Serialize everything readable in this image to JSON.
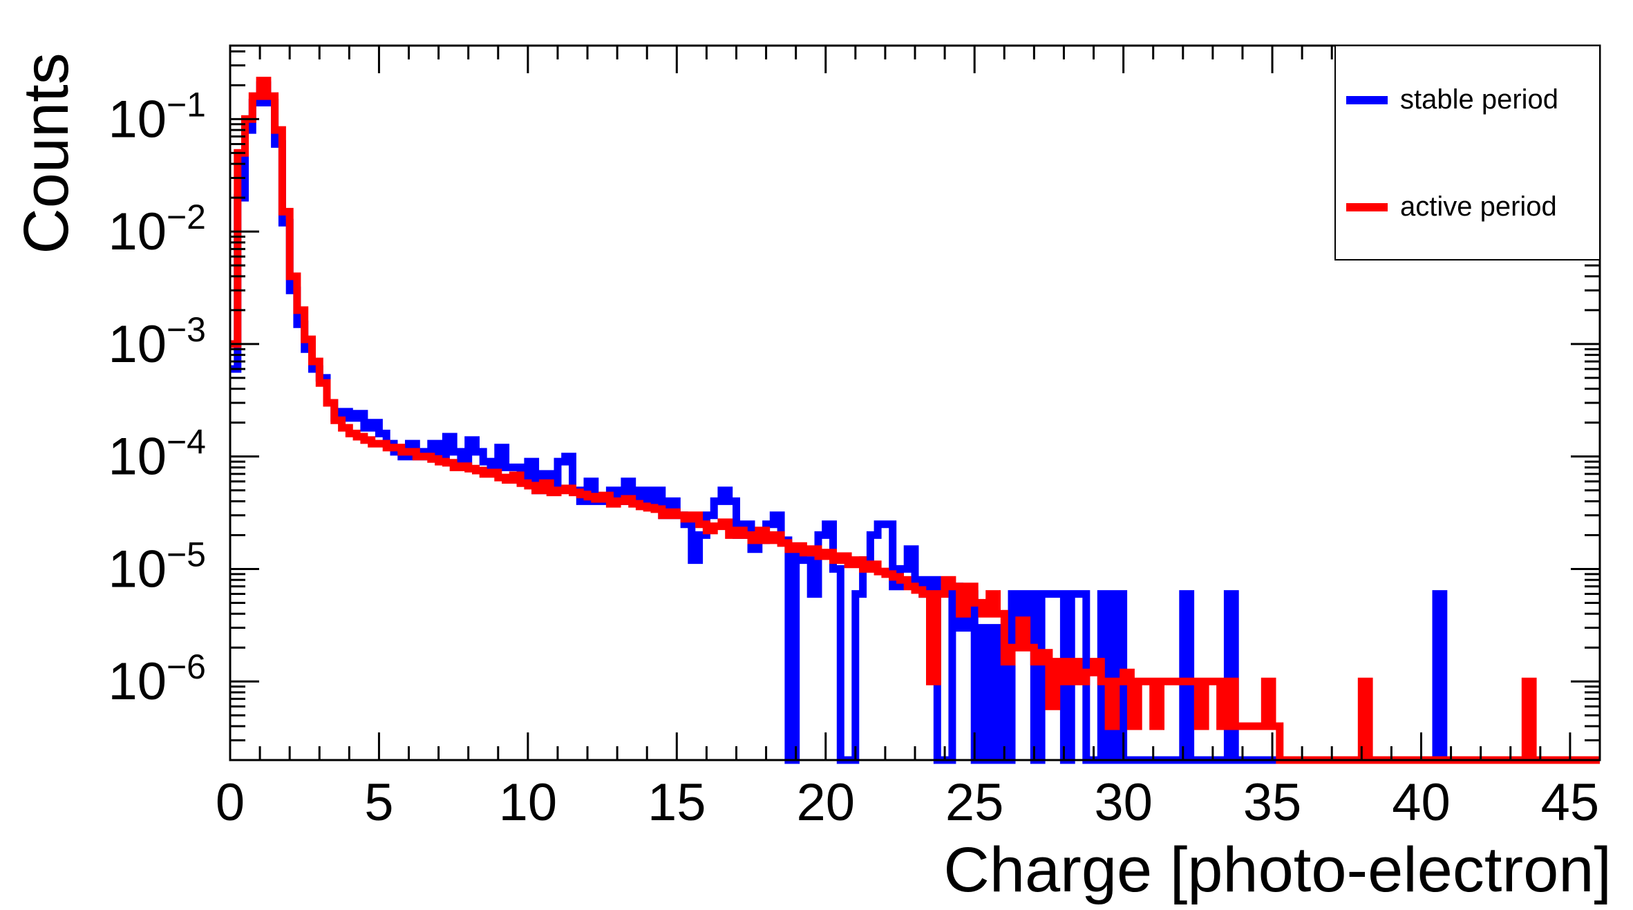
{
  "chart_data": {
    "type": "histogram-step",
    "xlabel": "Charge [photo-electron]",
    "ylabel": "Counts",
    "xlim": [
      0,
      46
    ],
    "ylim": [
      2e-07,
      0.45
    ],
    "yscale": "log",
    "bin_width": 0.25,
    "grid": false,
    "legend_position": "top-right",
    "x_ticks": [
      "0",
      "5",
      "10",
      "15",
      "20",
      "25",
      "30",
      "35",
      "40",
      "45"
    ],
    "y_ticks": [
      {
        "base": "10",
        "exp": "−1",
        "value": 0.1
      },
      {
        "base": "10",
        "exp": "−2",
        "value": 0.01
      },
      {
        "base": "10",
        "exp": "−3",
        "value": 0.001
      },
      {
        "base": "10",
        "exp": "−4",
        "value": 0.0001
      },
      {
        "base": "10",
        "exp": "−5",
        "value": 1e-05
      },
      {
        "base": "10",
        "exp": "−6",
        "value": 1e-06
      }
    ],
    "series": [
      {
        "name": "stable period",
        "color": "#0000ff",
        "bins": [
          [
            0.0,
            0.0006
          ],
          [
            0.25,
            0.02
          ],
          [
            0.5,
            0.08
          ],
          [
            0.75,
            0.14
          ],
          [
            1.0,
            0.2
          ],
          [
            1.25,
            0.14
          ],
          [
            1.5,
            0.06
          ],
          [
            1.75,
            0.012
          ],
          [
            2.0,
            0.003
          ],
          [
            2.25,
            0.0015
          ],
          [
            2.5,
            0.0009
          ],
          [
            2.75,
            0.0006
          ],
          [
            3.0,
            0.0005
          ],
          [
            3.25,
            0.0003
          ],
          [
            3.5,
            0.00022
          ],
          [
            3.75,
            0.00025
          ],
          [
            4.0,
            0.00022
          ],
          [
            4.25,
            0.00024
          ],
          [
            4.5,
            0.00018
          ],
          [
            4.75,
            0.0002
          ],
          [
            5.0,
            0.00016
          ],
          [
            5.25,
            0.00013
          ],
          [
            5.5,
            0.00011
          ],
          [
            5.75,
            0.0001
          ],
          [
            6.0,
            0.00013
          ],
          [
            6.25,
            0.0001
          ],
          [
            6.5,
            0.00011
          ],
          [
            6.75,
            0.00013
          ],
          [
            7.0,
            0.0001
          ],
          [
            7.25,
            0.00015
          ],
          [
            7.5,
            0.00011
          ],
          [
            7.75,
            9e-05
          ],
          [
            8.0,
            0.00014
          ],
          [
            8.25,
            0.00011
          ],
          [
            8.5,
            9e-05
          ],
          [
            8.75,
            8e-05
          ],
          [
            9.0,
            0.00012
          ],
          [
            9.25,
            8e-05
          ],
          [
            9.5,
            8e-05
          ],
          [
            9.75,
            6e-05
          ],
          [
            10.0,
            9e-05
          ],
          [
            10.25,
            5e-05
          ],
          [
            10.5,
            7e-05
          ],
          [
            10.75,
            5e-05
          ],
          [
            11.0,
            9e-05
          ],
          [
            11.25,
            0.0001
          ],
          [
            11.5,
            5e-05
          ],
          [
            11.75,
            4e-05
          ],
          [
            12.0,
            6e-05
          ],
          [
            12.25,
            4e-05
          ],
          [
            12.5,
            4e-05
          ],
          [
            12.75,
            5e-05
          ],
          [
            13.0,
            4e-05
          ],
          [
            13.25,
            6e-05
          ],
          [
            13.5,
            4e-05
          ],
          [
            13.75,
            5e-05
          ],
          [
            14.0,
            4e-05
          ],
          [
            14.25,
            5e-05
          ],
          [
            14.5,
            3e-05
          ],
          [
            14.75,
            4e-05
          ],
          [
            15.0,
            3e-05
          ],
          [
            15.25,
            2.5e-05
          ],
          [
            15.5,
            1.2e-05
          ],
          [
            15.75,
            2e-05
          ],
          [
            16.0,
            3e-05
          ],
          [
            16.25,
            4e-05
          ],
          [
            16.5,
            5e-05
          ],
          [
            16.75,
            4e-05
          ],
          [
            17.0,
            2e-05
          ],
          [
            17.25,
            2.5e-05
          ],
          [
            17.5,
            1.5e-05
          ],
          [
            17.75,
            1.8e-05
          ],
          [
            18.0,
            2.5e-05
          ],
          [
            18.25,
            3e-05
          ],
          [
            18.5,
            1.8e-05
          ],
          [
            18.75,
            0.0
          ],
          [
            19.0,
            1.5e-05
          ],
          [
            19.25,
            1.2e-05
          ],
          [
            19.5,
            6e-06
          ],
          [
            19.75,
            2e-05
          ],
          [
            20.0,
            2.5e-05
          ],
          [
            20.25,
            1e-05
          ],
          [
            20.5,
            0.0
          ],
          [
            20.75,
            0.0
          ],
          [
            21.0,
            6e-06
          ],
          [
            21.25,
            1.2e-05
          ],
          [
            21.5,
            2e-05
          ],
          [
            21.75,
            2.5e-05
          ],
          [
            22.0,
            2.5e-05
          ],
          [
            22.25,
            7e-06
          ],
          [
            22.5,
            1e-05
          ],
          [
            22.75,
            1.5e-05
          ],
          [
            23.0,
            8e-06
          ],
          [
            23.25,
            6e-06
          ],
          [
            23.5,
            8e-06
          ],
          [
            23.75,
            0.0
          ],
          [
            24.0,
            0.0
          ],
          [
            24.25,
            7e-06
          ],
          [
            24.5,
            3e-06
          ],
          [
            24.75,
            6e-06
          ],
          [
            25.0,
            0.0
          ],
          [
            25.25,
            3e-06
          ],
          [
            25.5,
            0.0
          ],
          [
            25.75,
            3e-06
          ],
          [
            26.0,
            0.0
          ],
          [
            26.25,
            6e-06
          ],
          [
            26.5,
            3e-06
          ],
          [
            26.75,
            6e-06
          ],
          [
            27.0,
            0.0
          ],
          [
            27.25,
            6e-06
          ],
          [
            27.5,
            6e-06
          ],
          [
            27.75,
            6e-06
          ],
          [
            28.0,
            0.0
          ],
          [
            28.25,
            6e-06
          ],
          [
            28.5,
            6e-06
          ],
          [
            28.75,
            0.0
          ],
          [
            29.0,
            0.0
          ],
          [
            29.25,
            6e-06
          ],
          [
            29.5,
            0.0
          ],
          [
            29.75,
            6e-06
          ],
          [
            30.0,
            0.0
          ],
          [
            30.25,
            0.0
          ],
          [
            32.0,
            6e-06
          ],
          [
            33.5,
            6e-06
          ],
          [
            40.5,
            6e-06
          ]
        ]
      },
      {
        "name": "active period",
        "color": "#ff0000",
        "bins": [
          [
            0.0,
            0.001
          ],
          [
            0.25,
            0.05
          ],
          [
            0.5,
            0.1
          ],
          [
            0.75,
            0.16
          ],
          [
            1.0,
            0.22
          ],
          [
            1.25,
            0.16
          ],
          [
            1.5,
            0.08
          ],
          [
            1.75,
            0.015
          ],
          [
            2.0,
            0.004
          ],
          [
            2.25,
            0.002
          ],
          [
            2.5,
            0.0011
          ],
          [
            2.75,
            0.0007
          ],
          [
            3.0,
            0.00045
          ],
          [
            3.25,
            0.0003
          ],
          [
            3.5,
            0.00021
          ],
          [
            3.75,
            0.00018
          ],
          [
            4.0,
            0.00016
          ],
          [
            4.25,
            0.00015
          ],
          [
            4.5,
            0.00014
          ],
          [
            4.75,
            0.00013
          ],
          [
            5.0,
            0.00013
          ],
          [
            5.25,
            0.00012
          ],
          [
            5.5,
            0.00012
          ],
          [
            5.75,
            0.00011
          ],
          [
            6.0,
            0.00011
          ],
          [
            6.25,
            0.0001
          ],
          [
            6.5,
            0.0001
          ],
          [
            6.75,
            9.5e-05
          ],
          [
            7.0,
            9e-05
          ],
          [
            7.25,
            8.8e-05
          ],
          [
            7.5,
            8e-05
          ],
          [
            7.75,
            8.2e-05
          ],
          [
            8.0,
            7.8e-05
          ],
          [
            8.25,
            7.5e-05
          ],
          [
            8.5,
            7e-05
          ],
          [
            8.75,
            7.2e-05
          ],
          [
            9.0,
            6.5e-05
          ],
          [
            9.25,
            6.2e-05
          ],
          [
            9.5,
            6.8e-05
          ],
          [
            9.75,
            5.8e-05
          ],
          [
            10.0,
            5.5e-05
          ],
          [
            10.25,
            5e-05
          ],
          [
            10.5,
            5.8e-05
          ],
          [
            10.75,
            4.8e-05
          ],
          [
            11.0,
            5e-05
          ],
          [
            11.25,
            5.2e-05
          ],
          [
            11.5,
            4.8e-05
          ],
          [
            11.75,
            4.6e-05
          ],
          [
            12.0,
            4.4e-05
          ],
          [
            12.25,
            4.2e-05
          ],
          [
            12.5,
            4.5e-05
          ],
          [
            12.75,
            3.8e-05
          ],
          [
            13.0,
            4e-05
          ],
          [
            13.25,
            4.2e-05
          ],
          [
            13.5,
            3.8e-05
          ],
          [
            13.75,
            3.6e-05
          ],
          [
            14.0,
            3.5e-05
          ],
          [
            14.25,
            3.4e-05
          ],
          [
            14.5,
            3e-05
          ],
          [
            14.75,
            3.2e-05
          ],
          [
            15.0,
            3e-05
          ],
          [
            15.25,
            2.8e-05
          ],
          [
            15.5,
            3e-05
          ],
          [
            15.75,
            2.5e-05
          ],
          [
            16.0,
            2.2e-05
          ],
          [
            16.25,
            2.4e-05
          ],
          [
            16.5,
            2.6e-05
          ],
          [
            16.75,
            2e-05
          ],
          [
            17.0,
            2.2e-05
          ],
          [
            17.25,
            2e-05
          ],
          [
            17.5,
            1.8e-05
          ],
          [
            17.75,
            2.2e-05
          ],
          [
            18.0,
            1.8e-05
          ],
          [
            18.25,
            2e-05
          ],
          [
            18.5,
            1.7e-05
          ],
          [
            18.75,
            1.5e-05
          ],
          [
            19.0,
            1.6e-05
          ],
          [
            19.25,
            1.4e-05
          ],
          [
            19.5,
            1.5e-05
          ],
          [
            19.75,
            1.3e-05
          ],
          [
            20.0,
            1.4e-05
          ],
          [
            20.25,
            1.2e-05
          ],
          [
            20.5,
            1.3e-05
          ],
          [
            20.75,
            1.1e-05
          ],
          [
            21.0,
            1.2e-05
          ],
          [
            21.25,
            1e-05
          ],
          [
            21.5,
            1.1e-05
          ],
          [
            21.75,
            9.5e-06
          ],
          [
            22.0,
            9e-06
          ],
          [
            22.25,
            8.5e-06
          ],
          [
            22.5,
            8e-06
          ],
          [
            22.75,
            7e-06
          ],
          [
            23.0,
            6.5e-06
          ],
          [
            23.25,
            6e-06
          ],
          [
            23.5,
            1e-06
          ],
          [
            23.75,
            6e-06
          ],
          [
            24.0,
            8e-06
          ],
          [
            24.25,
            7e-06
          ],
          [
            24.5,
            4e-06
          ],
          [
            24.75,
            7e-06
          ],
          [
            25.0,
            5e-06
          ],
          [
            25.25,
            4e-06
          ],
          [
            25.5,
            6e-06
          ],
          [
            25.75,
            4e-06
          ],
          [
            26.0,
            1.5e-06
          ],
          [
            26.25,
            2e-06
          ],
          [
            26.5,
            3.5e-06
          ],
          [
            26.75,
            2e-06
          ],
          [
            27.0,
            1.5e-06
          ],
          [
            27.25,
            1.8e-06
          ],
          [
            27.5,
            6e-07
          ],
          [
            27.75,
            1.5e-06
          ],
          [
            28.0,
            1e-06
          ],
          [
            28.25,
            1.5e-06
          ],
          [
            28.5,
            1e-06
          ],
          [
            28.75,
            1.2e-06
          ],
          [
            29.0,
            1.5e-06
          ],
          [
            29.25,
            1e-06
          ],
          [
            29.5,
            4e-07
          ],
          [
            29.75,
            1e-06
          ],
          [
            30.0,
            1.2e-06
          ],
          [
            30.25,
            4e-07
          ],
          [
            30.5,
            1e-06
          ],
          [
            30.75,
            1e-06
          ],
          [
            31.0,
            4e-07
          ],
          [
            31.25,
            1e-06
          ],
          [
            31.5,
            1e-06
          ],
          [
            31.75,
            1e-06
          ],
          [
            32.0,
            1e-06
          ],
          [
            32.25,
            1e-06
          ],
          [
            32.5,
            4e-07
          ],
          [
            32.75,
            1e-06
          ],
          [
            33.0,
            1e-06
          ],
          [
            33.25,
            4e-07
          ],
          [
            33.5,
            1e-06
          ],
          [
            33.75,
            4e-07
          ],
          [
            34.0,
            4e-07
          ],
          [
            34.25,
            4e-07
          ],
          [
            34.5,
            4e-07
          ],
          [
            34.75,
            1e-06
          ],
          [
            35.0,
            4e-07
          ],
          [
            38.0,
            1e-06
          ],
          [
            43.5,
            1e-06
          ]
        ]
      }
    ]
  }
}
